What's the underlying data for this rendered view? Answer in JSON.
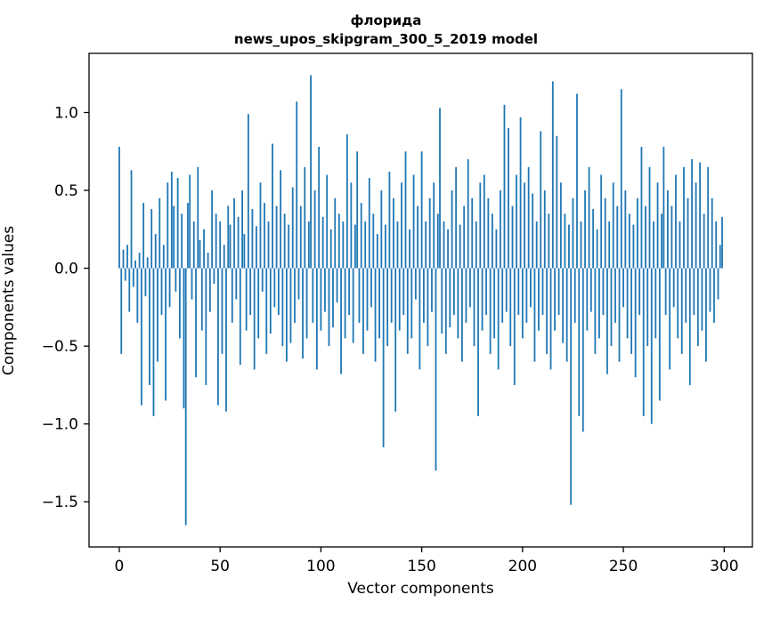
{
  "figure": {
    "title_line1": "флорида",
    "title_line2": "news_upos_skipgram_300_5_2019 model",
    "xlabel": "Vector components",
    "ylabel": "Components values"
  },
  "chart_data": {
    "type": "bar",
    "title": "флорида — news_upos_skipgram_300_5_2019 model",
    "xlabel": "Vector components",
    "ylabel": "Components values",
    "legend": "none",
    "grid": false,
    "bar_color": "#1f77b4",
    "axis_color": "#000000",
    "xlim": [
      -15,
      314
    ],
    "ylim": [
      -1.79,
      1.38
    ],
    "x_ticks": [
      {
        "value": 0,
        "label": "0"
      },
      {
        "value": 50,
        "label": "50"
      },
      {
        "value": 100,
        "label": "100"
      },
      {
        "value": 150,
        "label": "150"
      },
      {
        "value": 200,
        "label": "200"
      },
      {
        "value": 250,
        "label": "250"
      },
      {
        "value": 300,
        "label": "300"
      }
    ],
    "y_ticks": [
      {
        "value": -1.5,
        "label": "−1.5"
      },
      {
        "value": -1.0,
        "label": "−1.0"
      },
      {
        "value": -0.5,
        "label": "−0.5"
      },
      {
        "value": 0.0,
        "label": "0.0"
      },
      {
        "value": 0.5,
        "label": "0.5"
      },
      {
        "value": 1.0,
        "label": "1.0"
      }
    ],
    "values": [
      0.78,
      -0.55,
      0.12,
      -0.08,
      0.15,
      -0.28,
      0.63,
      -0.12,
      0.05,
      -0.35,
      0.1,
      -0.88,
      0.42,
      -0.18,
      0.07,
      -0.75,
      0.38,
      -0.95,
      0.22,
      -0.6,
      0.45,
      -0.3,
      0.15,
      -0.85,
      0.55,
      -0.25,
      0.62,
      0.4,
      -0.15,
      0.58,
      -0.45,
      0.35,
      -0.9,
      -1.65,
      0.42,
      0.6,
      -0.2,
      0.3,
      -0.7,
      0.65,
      0.18,
      -0.4,
      0.25,
      -0.75,
      0.1,
      -0.28,
      0.5,
      -0.1,
      0.35,
      -0.88,
      0.3,
      -0.55,
      0.15,
      -0.92,
      0.4,
      0.28,
      -0.35,
      0.45,
      -0.2,
      0.33,
      -0.62,
      0.5,
      0.22,
      -0.4,
      0.99,
      -0.3,
      0.38,
      -0.65,
      0.27,
      -0.45,
      0.55,
      -0.15,
      0.42,
      -0.55,
      0.3,
      -0.42,
      0.8,
      -0.25,
      0.4,
      -0.3,
      0.63,
      -0.5,
      0.35,
      -0.6,
      0.28,
      -0.48,
      0.52,
      -0.35,
      1.07,
      -0.2,
      0.4,
      -0.58,
      0.65,
      -0.45,
      0.3,
      1.24,
      -0.35,
      0.5,
      -0.65,
      0.78,
      -0.4,
      0.33,
      -0.28,
      0.6,
      -0.5,
      0.25,
      -0.38,
      0.45,
      -0.22,
      0.35,
      -0.68,
      0.3,
      -0.45,
      0.86,
      -0.3,
      0.55,
      -0.48,
      0.28,
      0.75,
      -0.35,
      0.42,
      -0.55,
      0.3,
      -0.4,
      0.58,
      -0.25,
      0.35,
      -0.6,
      0.22,
      -0.45,
      0.5,
      -1.15,
      0.28,
      -0.5,
      0.62,
      -0.35,
      0.45,
      -0.92,
      0.3,
      -0.4,
      0.55,
      -0.3,
      0.75,
      -0.55,
      0.25,
      -0.45,
      0.6,
      -0.2,
      0.4,
      -0.65,
      0.75,
      -0.35,
      0.3,
      -0.5,
      0.45,
      -0.28,
      0.55,
      -1.3,
      0.35,
      1.03,
      -0.42,
      0.3,
      -0.55,
      0.25,
      -0.38,
      0.5,
      -0.3,
      0.65,
      -0.45,
      0.28,
      -0.6,
      0.4,
      -0.35,
      0.7,
      -0.25,
      0.45,
      -0.5,
      0.3,
      -0.95,
      0.55,
      -0.4,
      0.6,
      -0.3,
      0.45,
      -0.55,
      0.35,
      -0.45,
      0.25,
      -0.65,
      0.5,
      -0.35,
      1.05,
      -0.28,
      0.9,
      -0.5,
      0.4,
      -0.75,
      0.6,
      -0.3,
      0.97,
      -0.45,
      0.55,
      -0.35,
      0.65,
      -0.25,
      0.48,
      -0.6,
      0.3,
      -0.4,
      0.88,
      -0.3,
      0.5,
      -0.55,
      0.35,
      -0.65,
      1.2,
      -0.4,
      0.85,
      -0.3,
      0.55,
      -0.48,
      0.35,
      -0.6,
      0.28,
      -1.52,
      0.45,
      -0.35,
      1.12,
      -0.95,
      0.3,
      -1.05,
      0.5,
      -0.4,
      0.65,
      -0.28,
      0.38,
      -0.55,
      0.25,
      -0.45,
      0.6,
      -0.3,
      0.45,
      -0.68,
      0.3,
      -0.5,
      0.55,
      -0.35,
      0.4,
      -0.6,
      1.15,
      -0.25,
      0.5,
      -0.45,
      0.35,
      -0.55,
      0.28,
      -0.7,
      0.45,
      -0.3,
      0.78,
      -0.95,
      0.4,
      -0.5,
      0.65,
      -1.0,
      0.3,
      -0.45,
      0.55,
      -0.85,
      0.35,
      0.78,
      -0.3,
      0.5,
      -0.65,
      0.4,
      -0.25,
      0.6,
      -0.45,
      0.3,
      -0.55,
      0.65,
      -0.35,
      0.45,
      -0.75,
      0.7,
      -0.3,
      0.55,
      -0.5,
      0.68,
      -0.4,
      0.35,
      -0.6,
      0.65,
      -0.28,
      0.45,
      -0.35,
      0.3,
      -0.2,
      0.15,
      0.33
    ]
  }
}
